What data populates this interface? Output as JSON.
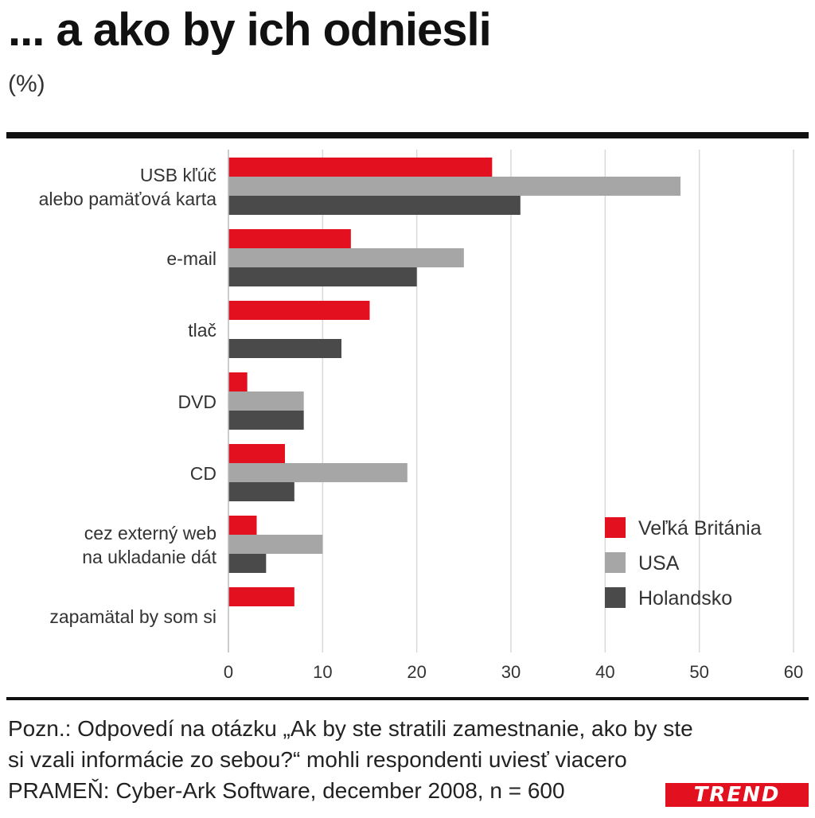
{
  "header": {
    "title": "... a ako by ich odniesli",
    "unit": "(%)"
  },
  "colors": {
    "series": [
      "#e3101f",
      "#a6a6a6",
      "#4a4a4a"
    ],
    "grid": "#d9d9d9",
    "rule": "#111111",
    "logo": "#e3101f"
  },
  "chart_data": {
    "type": "bar",
    "orientation": "horizontal",
    "categories": [
      [
        "USB kľúč",
        "alebo pamäťová karta"
      ],
      [
        "e-mail"
      ],
      [
        "tlač"
      ],
      [
        "DVD"
      ],
      [
        "CD"
      ],
      [
        "cez externý web",
        "na ukladanie dát"
      ],
      [
        "zapamätal by som si"
      ]
    ],
    "series": [
      {
        "name": "Veľká Británia",
        "values": [
          28,
          13,
          15,
          2,
          6,
          3,
          7
        ]
      },
      {
        "name": "USA",
        "values": [
          48,
          25,
          null,
          8,
          19,
          10,
          null
        ]
      },
      {
        "name": "Holandsko",
        "values": [
          31,
          20,
          12,
          8,
          7,
          4,
          null
        ]
      }
    ],
    "xlim": [
      0,
      60
    ],
    "xticks": [
      0,
      10,
      20,
      30,
      40,
      50,
      60
    ],
    "grid": true,
    "legend_position": "right"
  },
  "footer": {
    "note_line1": "Pozn.: Odpovedí na otázku „Ak by ste stratili zamestnanie, ako by ste",
    "note_line2": "si vzali informácie zo sebou?“ mohli respondenti uviesť viacero",
    "source": "PRAMEŇ: Cyber-Ark Software, december 2008, n = 600",
    "logo_text": "TREND"
  }
}
